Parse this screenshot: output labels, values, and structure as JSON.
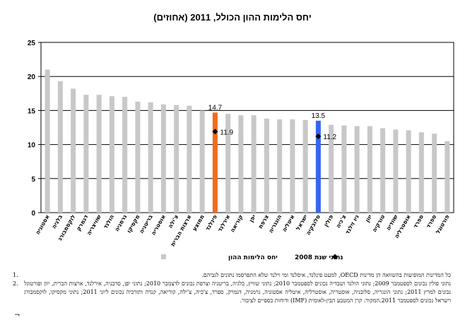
{
  "title": "יחס הלימות ההון הכולל, 2011 (אחוזים)",
  "chart_data": {
    "type": "bar",
    "title": "יחס הלימות ההון הכולל, 2011 (אחוזים)",
    "xlabel": "",
    "ylabel": "",
    "ylim": [
      0,
      25
    ],
    "y_ticks": [
      "0",
      "5",
      "10",
      "15",
      "20",
      "25"
    ],
    "grid": true,
    "categories": [
      "אסטוניה",
      "בלגיה",
      "לוקסמבורג",
      "דנמרק",
      "שוויצריה",
      "הולנד",
      "גרמניה",
      "מקסיקו",
      "בריטניה",
      "אוסטריה",
      "צ'ילה",
      "ארצות הברית",
      "ממוצע",
      "פינלנד",
      "אירלנד",
      "קוריאה",
      "יפן",
      "צרפת",
      "הונגריה",
      "איטליה",
      "ישראל",
      "סלובקיה",
      "פולין",
      "צ'כיה",
      "ניו זילנד",
      "יוון",
      "טורקיה",
      "שוודיה",
      "אוסטרליה",
      "ספרד",
      "ספרד",
      "פורטוגל"
    ],
    "series": [
      {
        "name": "יחס הלימות ההון",
        "values": [
          21.0,
          19.3,
          18.2,
          17.3,
          17.3,
          17.1,
          17.0,
          16.3,
          16.2,
          15.9,
          15.8,
          15.7,
          15.0,
          14.7,
          14.5,
          14.3,
          14.3,
          13.8,
          13.7,
          13.7,
          13.6,
          13.5,
          12.9,
          12.8,
          12.7,
          12.7,
          12.4,
          12.2,
          12.1,
          11.8,
          11.6,
          10.5
        ],
        "highlight": {
          "13": "#f36b1c",
          "21": "#3565f0"
        },
        "data_labels": {
          "13": "14.7",
          "21": "13.5"
        }
      },
      {
        "name": "נתוני שנת 2008",
        "type": "scatter",
        "marker": "diamond",
        "points": [
          {
            "index": 13,
            "value": 11.9,
            "label": "11.9"
          },
          {
            "index": 21,
            "value": 11.2,
            "label": "11.2"
          }
        ]
      }
    ],
    "colors": {
      "bar": "#c8c8c8",
      "average": "#f36b1c",
      "israel": "#3565f0",
      "marker": "#000000"
    },
    "legend_placement": "bottom"
  },
  "legend": {
    "bars_label": "יחס הלימות ההון",
    "markers_label": "נתוני שנת 2008"
  },
  "notes": [
    {
      "num": "1.",
      "text": "כל המדינות המופיעות בהשוואה הן מדינות OECD, למעט פינלנד, איסלנד ומי וילנד שלא התפרסמו נתונים לגביהם."
    },
    {
      "num": "2.",
      "text": "נתוני פולין נכונים לספטמבר 2009; נתוני הולנד ושבדיה נכונים לספטמבר 2010; נתוני שוויץ, בלגיה, בריטניה וצרפת נכונים לדצמבר 2010; נתוני יפן, סרבניה, אירלנד, ארצות הברית, יוון ופורטוגל נכונים למרץ 2011; נתוני הונגריה, סלובניה, אוסטריה, אוסטרליה, איטליה אסטוניה, גרמניה, דנמרק, ספרד, צ'כיה, צ'ילה, קוריאה, קנדה ותורכיה נכונים ליוני 2011; נתוני מקסיקו, לוקסמבורג וישראל נכונים לספטמבר 2011.המקור: קרן המטבע הבין-לאומית (IMF) ודוחות כספיים לציבור."
    }
  ],
  "corner_mark": "¬"
}
